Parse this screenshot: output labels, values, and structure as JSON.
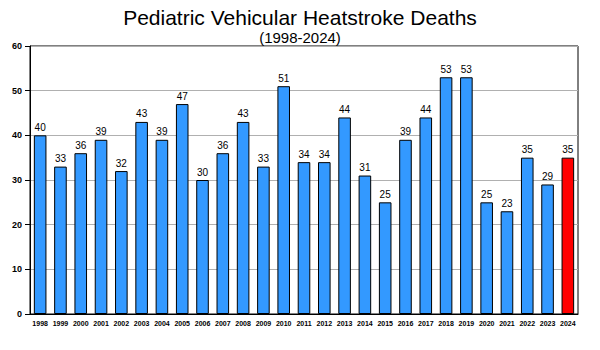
{
  "chart_data": {
    "type": "bar",
    "title": "Pediatric Vehicular Heatstroke Deaths",
    "subtitle": "(1998-2024)",
    "categories": [
      "1998",
      "1999",
      "2000",
      "2001",
      "2002",
      "2003",
      "2004",
      "2005",
      "2006",
      "2007",
      "2008",
      "2009",
      "2010",
      "2011",
      "2012",
      "2013",
      "2014",
      "2015",
      "2016",
      "2017",
      "2018",
      "2019",
      "2020",
      "2021",
      "2022",
      "2023",
      "2024"
    ],
    "values": [
      40,
      33,
      36,
      39,
      32,
      43,
      39,
      47,
      30,
      36,
      43,
      33,
      51,
      34,
      34,
      44,
      31,
      25,
      39,
      44,
      53,
      53,
      25,
      23,
      35,
      29,
      35
    ],
    "colors": [
      "#3399ff",
      "#3399ff",
      "#3399ff",
      "#3399ff",
      "#3399ff",
      "#3399ff",
      "#3399ff",
      "#3399ff",
      "#3399ff",
      "#3399ff",
      "#3399ff",
      "#3399ff",
      "#3399ff",
      "#3399ff",
      "#3399ff",
      "#3399ff",
      "#3399ff",
      "#3399ff",
      "#3399ff",
      "#3399ff",
      "#3399ff",
      "#3399ff",
      "#3399ff",
      "#3399ff",
      "#3399ff",
      "#3399ff",
      "#ff0000"
    ],
    "ylim": [
      0,
      60
    ],
    "yticks": [
      0,
      10,
      20,
      30,
      40,
      50,
      60
    ],
    "grid": true,
    "data_labels": true
  }
}
